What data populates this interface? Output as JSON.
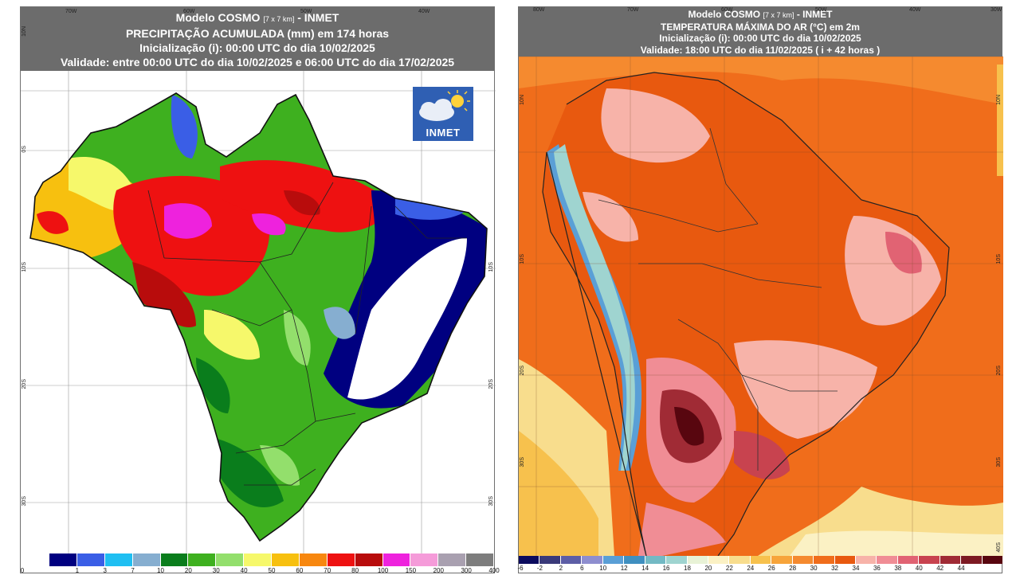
{
  "left_panel": {
    "header": {
      "line1_main": "Modelo COSMO",
      "line1_res": "[7 x 7 km]",
      "line1_org": "- INMET",
      "line2": "PRECIPITAÇÃO ACUMULADA (mm) em 174 horas",
      "line3": "Inicialização (i): 00:00 UTC do dia 10/02/2025",
      "line4": "Validade: entre 00:00 UTC do dia 10/02/2025 e 06:00 UTC do dia 17/02/2025"
    },
    "lon_labels": [
      "70W",
      "60W",
      "50W",
      "40W"
    ],
    "lat_labels": [
      "10N",
      "0S",
      "10S",
      "20S",
      "30S"
    ],
    "logo_text": "INMET",
    "colorbar": {
      "colors": [
        "#000080",
        "#3a5ee6",
        "#1fbff2",
        "#86aed0",
        "#0a7d1c",
        "#3eb01f",
        "#93df6c",
        "#f6f86b",
        "#f7c00f",
        "#f7870f",
        "#ee1111",
        "#b80c0c",
        "#ee22dd",
        "#f59bd9",
        "#a9a0b0",
        "#7d7d7d"
      ],
      "labels": [
        "0",
        "1",
        "3",
        "7",
        "10",
        "20",
        "30",
        "40",
        "50",
        "60",
        "70",
        "80",
        "100",
        "150",
        "200",
        "300",
        "400"
      ]
    }
  },
  "right_panel": {
    "header": {
      "line1_main": "Modelo COSMO",
      "line1_res": "[7 x 7 km]",
      "line1_org": "- INMET",
      "line2": "TEMPERATURA MÁXIMA DO AR (°C) em 2m",
      "line3": "Inicialização (i): 00:00 UTC do dia 10/02/2025",
      "line4": "Validade: 18:00 UTC do dia 11/02/2025 ( i + 42 horas )"
    },
    "lon_labels": [
      "80W",
      "70W",
      "60W",
      "50W",
      "40W",
      "30W"
    ],
    "lat_labels": [
      "10N",
      "10S",
      "20S",
      "30S",
      "40S"
    ],
    "colorbar": {
      "colors": [
        "#0b0b5e",
        "#3a3a7a",
        "#5d5ea6",
        "#8e8ecf",
        "#5a9fd6",
        "#3f8fc0",
        "#73b9c4",
        "#9fd4d0",
        "#e8f2d6",
        "#fbf1c4",
        "#f8dd8d",
        "#f7c14d",
        "#f7a43a",
        "#f58a2f",
        "#f06d1b",
        "#e8590f",
        "#f7b3a9",
        "#f08d95",
        "#e16373",
        "#c8434f",
        "#a02b35",
        "#7d1a23",
        "#58060f"
      ],
      "labels": [
        "-6",
        "-2",
        "2",
        "6",
        "10",
        "12",
        "14",
        "16",
        "18",
        "20",
        "22",
        "24",
        "26",
        "28",
        "30",
        "32",
        "34",
        "36",
        "38",
        "40",
        "42",
        "44"
      ]
    }
  }
}
